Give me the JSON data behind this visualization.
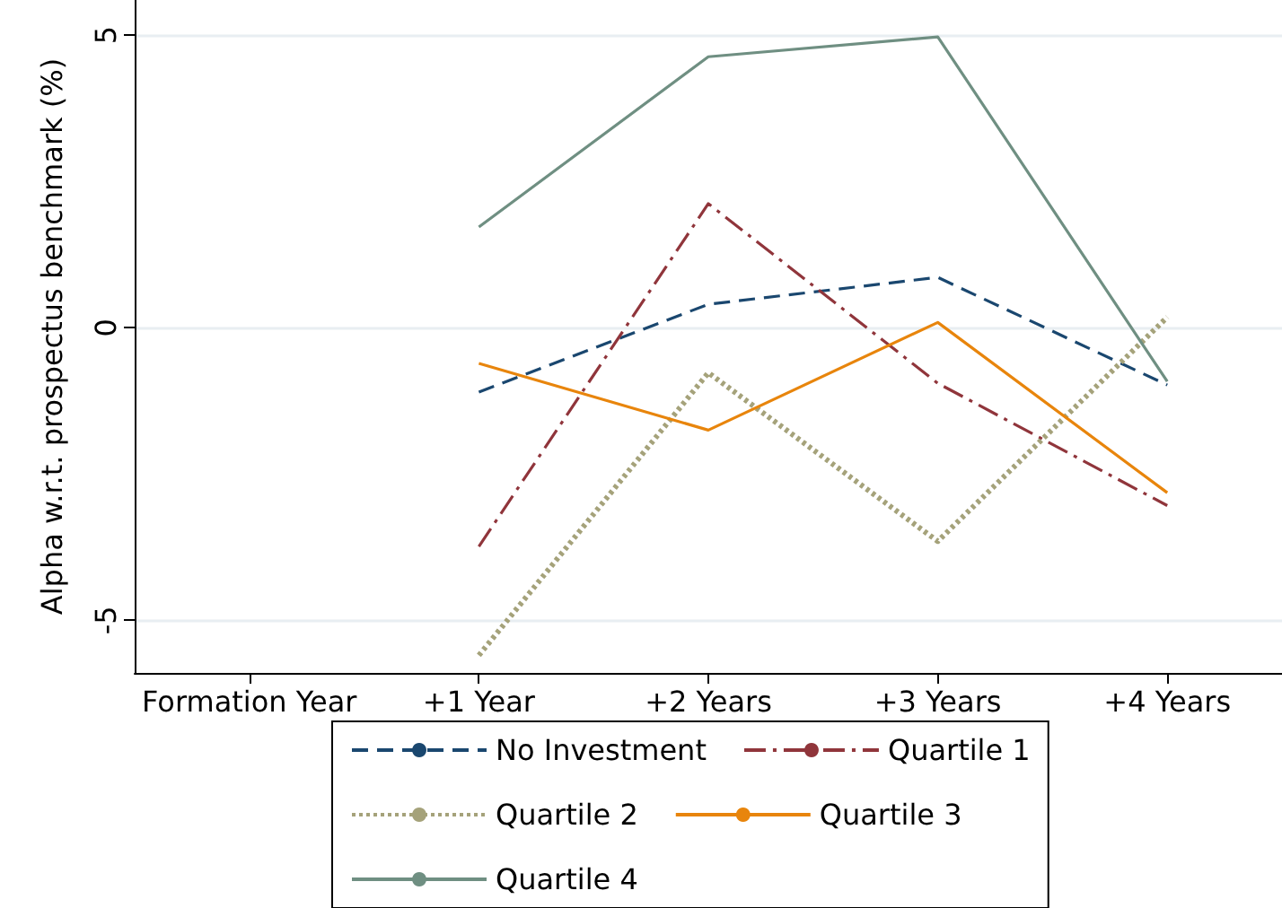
{
  "chart_data": {
    "type": "line",
    "ylabel": "Alpha w.r.t. prospectus benchmark (%)",
    "categories": [
      "Formation Year",
      "+1 Year",
      "+2 Years",
      "+3 Years",
      "+4 Years"
    ],
    "ylim": [
      -5.9,
      5.6
    ],
    "yticks": [
      -5,
      0,
      5
    ],
    "grid": "y",
    "legend": "bottom",
    "marker": "none",
    "series": [
      {
        "name": "No Investment",
        "color": "#1a476f",
        "line_style": "dashed",
        "values": [
          null,
          -1.1,
          0.4,
          0.86,
          -0.98
        ]
      },
      {
        "name": "Quartile 1",
        "color": "#90353b",
        "line_style": "dashdot",
        "values": [
          null,
          -3.74,
          2.12,
          -0.95,
          -3.04
        ]
      },
      {
        "name": "Quartile 2",
        "color": "#a5a27a",
        "line_style": "dotted",
        "values": [
          null,
          -5.6,
          -0.77,
          -3.65,
          0.18
        ]
      },
      {
        "name": "Quartile 3",
        "color": "#e8850c",
        "line_style": "solid",
        "values": [
          null,
          -0.61,
          -1.75,
          0.09,
          -2.82
        ]
      },
      {
        "name": "Quartile 4",
        "color": "#6f8f82",
        "line_style": "solid",
        "values": [
          null,
          1.72,
          4.63,
          4.97,
          -0.92
        ]
      }
    ]
  }
}
